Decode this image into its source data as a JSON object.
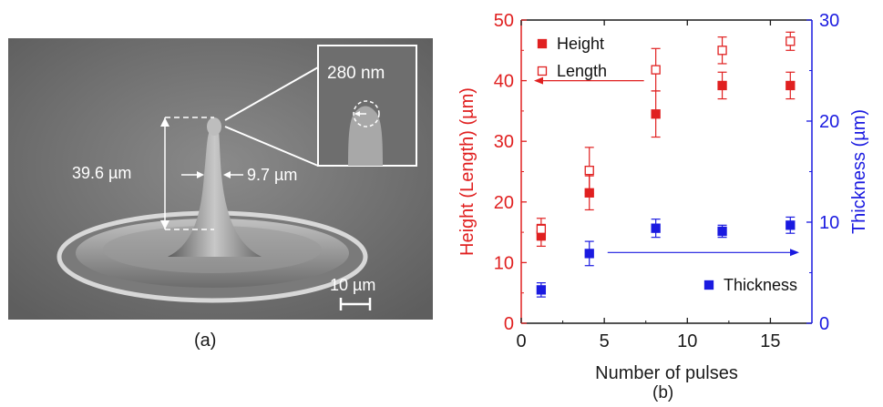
{
  "panel_a": {
    "caption": "(a)",
    "height_label": "39.6 µm",
    "width_label": "9.7 µm",
    "inset_label": "280 nm",
    "scale_label": "10 µm"
  },
  "panel_b": {
    "caption": "(b)"
  },
  "chart_data": {
    "type": "scatter",
    "xlabel": "Number of pulses",
    "ylabel": "Height (Length) (µm)",
    "y2label": "Thickness (µm)",
    "xlim": [
      0,
      17.5
    ],
    "xticks": [
      0,
      5,
      10,
      15
    ],
    "ylim": [
      0,
      50
    ],
    "yticks": [
      0,
      10,
      20,
      30,
      40,
      50
    ],
    "y2lim": [
      0,
      30
    ],
    "y2ticks": [
      0,
      10,
      20,
      30
    ],
    "grid": false,
    "legend_position": "top-left / bottom-right",
    "series": [
      {
        "name": "Height",
        "axis": "left",
        "marker": "filled-square",
        "color": "#e02020",
        "x": [
          1.2,
          4.1,
          8.1,
          12.1,
          16.2
        ],
        "y": [
          14.5,
          21.5,
          34.5,
          39.2,
          39.2
        ],
        "err": [
          1.8,
          2.8,
          3.8,
          2.2,
          2.2
        ]
      },
      {
        "name": "Length",
        "axis": "left",
        "marker": "open-square",
        "color": "#e02020",
        "x": [
          1.2,
          4.1,
          8.1,
          12.1,
          16.2
        ],
        "y": [
          15.5,
          25.2,
          41.8,
          45.0,
          46.5
        ],
        "err": [
          1.8,
          3.8,
          3.5,
          2.2,
          1.5
        ]
      },
      {
        "name": "Thickness",
        "axis": "right",
        "marker": "filled-square",
        "color": "#1a1ae0",
        "x": [
          1.2,
          4.1,
          8.1,
          12.1,
          16.2
        ],
        "y": [
          3.3,
          6.9,
          9.4,
          9.1,
          9.7
        ],
        "err": [
          0.7,
          1.2,
          0.9,
          0.6,
          0.8
        ]
      }
    ]
  }
}
